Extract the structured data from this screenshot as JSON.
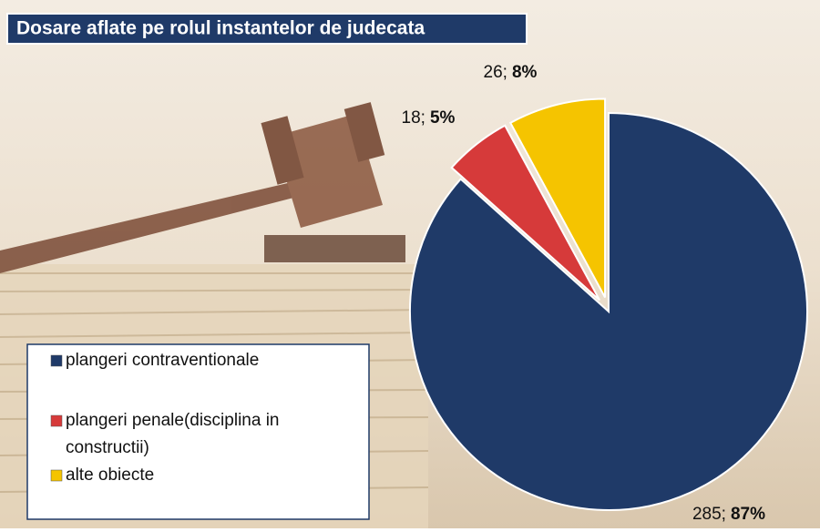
{
  "chart_data": {
    "type": "pie",
    "title": "Dosare aflate pe rolul instantelor de judecata",
    "categories": [
      "plangeri contraventionale",
      "plangeri penale(disciplina in constructii)",
      "alte obiecte"
    ],
    "values": [
      285,
      18,
      26
    ],
    "value_labels": [
      "285;",
      "18;",
      "26;"
    ],
    "percent_labels": [
      "87%",
      "5%",
      "8%"
    ],
    "colors": [
      "#1f3a68",
      "#d63a3a",
      "#f5c400"
    ],
    "exploded": [
      false,
      true,
      true
    ]
  }
}
